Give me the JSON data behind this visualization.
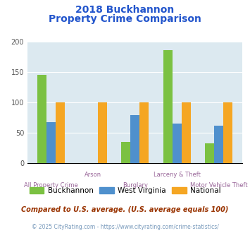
{
  "title_line1": "2018 Buckhannon",
  "title_line2": "Property Crime Comparison",
  "categories": [
    "All Property Crime",
    "Arson",
    "Burglary",
    "Larceny & Theft",
    "Motor Vehicle Theft"
  ],
  "buckhannon": [
    146,
    0,
    35,
    186,
    33
  ],
  "west_virginia": [
    68,
    0,
    79,
    65,
    62
  ],
  "national": [
    100,
    100,
    100,
    100,
    100
  ],
  "color_buckhannon": "#7bc142",
  "color_west_virginia": "#4f90cd",
  "color_national": "#f5a623",
  "ylim": [
    0,
    200
  ],
  "yticks": [
    0,
    50,
    100,
    150,
    200
  ],
  "plot_bg": "#dce9f0",
  "footer_text": "Compared to U.S. average. (U.S. average equals 100)",
  "copyright_text": "© 2025 CityRating.com - https://www.cityrating.com/crime-statistics/",
  "title_color": "#2255cc",
  "footer_color": "#993300",
  "copyright_color": "#7799bb",
  "xlabel_color": "#996699",
  "bar_width": 0.22,
  "stagger_up": [
    1,
    3
  ],
  "stagger_down": [
    0,
    2,
    4
  ]
}
